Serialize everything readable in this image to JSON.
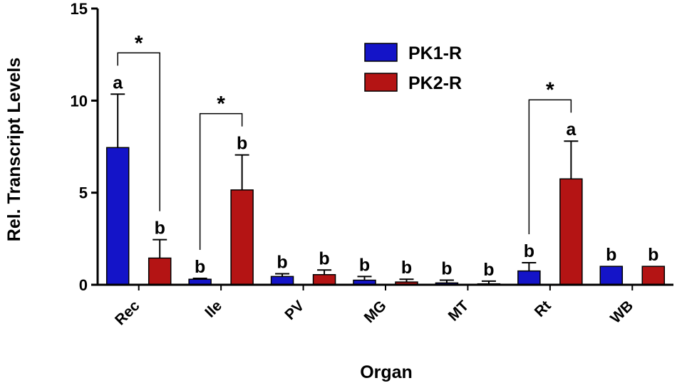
{
  "chart_data": {
    "type": "bar",
    "xlabel": "Organ",
    "ylabel": "Rel. Transcript Levels",
    "ylim": [
      0,
      15
    ],
    "yticks": [
      "0",
      "5",
      "10",
      "15"
    ],
    "categories": [
      "Rec",
      "Ile",
      "PV",
      "MG",
      "MT",
      "Rt",
      "WB"
    ],
    "series": [
      {
        "name": "PK1-R",
        "color": "#1414c8",
        "values": [
          7.45,
          0.3,
          0.45,
          0.25,
          0.1,
          0.75,
          1.0
        ],
        "errors": [
          2.9,
          0.05,
          0.15,
          0.2,
          0.15,
          0.45,
          0.0
        ],
        "letters": [
          "a",
          "b",
          "b",
          "b",
          "b",
          "b",
          "b"
        ]
      },
      {
        "name": "PK2-R",
        "color": "#b41414",
        "values": [
          1.45,
          5.15,
          0.55,
          0.15,
          0.05,
          5.75,
          1.0
        ],
        "errors": [
          1.0,
          1.9,
          0.25,
          0.15,
          0.15,
          2.05,
          0.0
        ],
        "letters": [
          "b",
          "b",
          "b",
          "b",
          "b",
          "a",
          "b"
        ]
      }
    ],
    "significance": [
      {
        "category": "Rec",
        "label": "*"
      },
      {
        "category": "Ile",
        "label": "*"
      },
      {
        "category": "Rt",
        "label": "*"
      }
    ],
    "legend_position": "top-center"
  }
}
